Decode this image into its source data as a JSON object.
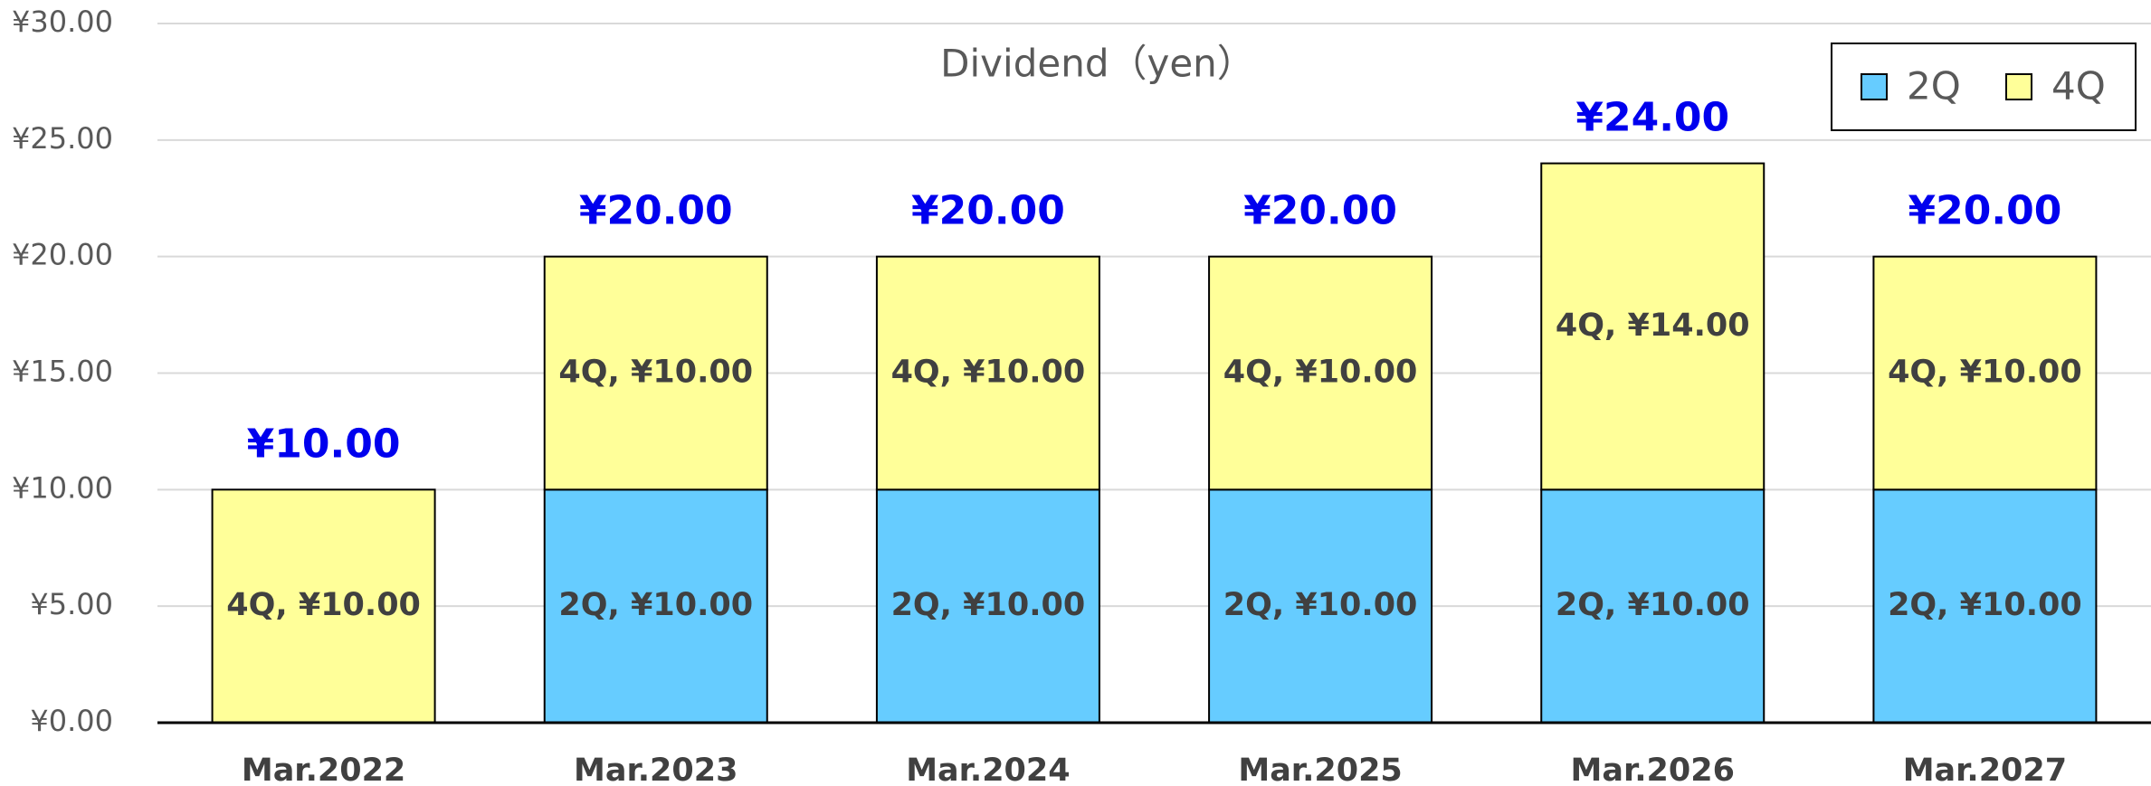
{
  "chart_data": {
    "type": "stacked_bar",
    "title": "Dividend（yen）",
    "categories": [
      "Mar.2022",
      "Mar.2023",
      "Mar.2024",
      "Mar.2025",
      "Mar.2026",
      "Mar.2027"
    ],
    "series": [
      {
        "name": "2Q",
        "color": "#66ccff",
        "values": [
          null,
          10,
          10,
          10,
          10,
          10
        ],
        "value_labels": [
          null,
          "2Q, ¥10.00",
          "2Q, ¥10.00",
          "2Q, ¥10.00",
          "2Q, ¥10.00",
          "2Q, ¥10.00"
        ]
      },
      {
        "name": "4Q",
        "color": "#ffff99",
        "values": [
          10,
          10,
          10,
          10,
          14,
          10
        ],
        "value_labels": [
          "4Q, ¥10.00",
          "4Q, ¥10.00",
          "4Q, ¥10.00",
          "4Q, ¥10.00",
          "4Q, ¥14.00",
          "4Q, ¥10.00"
        ]
      }
    ],
    "totals": [
      10,
      20,
      20,
      20,
      24,
      20
    ],
    "total_labels": [
      "¥10.00",
      "¥20.00",
      "¥20.00",
      "¥20.00",
      "¥24.00",
      "¥20.00"
    ],
    "ylim": [
      0,
      30
    ],
    "yticks": [
      {
        "value": 0,
        "label": "¥0.00"
      },
      {
        "value": 5,
        "label": "¥5.00"
      },
      {
        "value": 10,
        "label": "¥10.00"
      },
      {
        "value": 15,
        "label": "¥15.00"
      },
      {
        "value": 20,
        "label": "¥20.00"
      },
      {
        "value": 25,
        "label": "¥25.00"
      },
      {
        "value": 30,
        "label": "¥30.00"
      }
    ],
    "grid": true,
    "legend": "top-right"
  }
}
